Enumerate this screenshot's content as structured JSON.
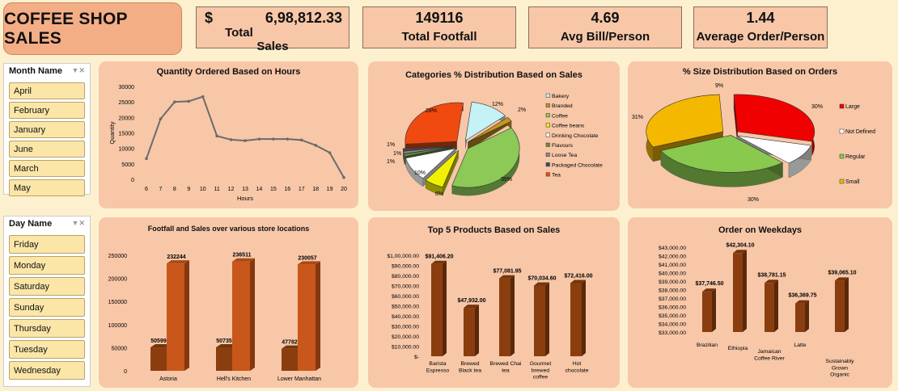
{
  "dashboard_title": "COFFEE SHOP SALES",
  "kpis": {
    "total_sales": {
      "currency": "$",
      "value": "6,98,812.33",
      "label": "Total Sales"
    },
    "total_footfall": {
      "value": "149116",
      "label": "Total Footfall"
    },
    "avg_bill": {
      "value": "4.69",
      "label": "Avg Bill/Person"
    },
    "avg_order": {
      "value": "1.44",
      "label": "Average Order/Person"
    }
  },
  "month_slicer": {
    "header": "Month Name",
    "items": [
      "April",
      "February",
      "January",
      "June",
      "March",
      "May"
    ]
  },
  "day_slicer": {
    "header": "Day Name",
    "items": [
      "Friday",
      "Monday",
      "Saturday",
      "Sunday",
      "Thursday",
      "Tuesday",
      "Wednesday"
    ]
  },
  "icons": {
    "filter": "filter-clear-icon"
  },
  "chart_data": [
    {
      "id": "hours",
      "type": "line",
      "title": "Quantity Ordered Based on Hours",
      "xlabel": "Hours",
      "ylabel": "Quantity",
      "x": [
        6,
        7,
        8,
        9,
        10,
        11,
        12,
        13,
        14,
        15,
        16,
        17,
        18,
        19,
        20
      ],
      "values": [
        6700,
        19500,
        25000,
        25200,
        26700,
        14000,
        12800,
        12500,
        13000,
        13000,
        13000,
        12700,
        11000,
        8600,
        600
      ],
      "ylim": [
        0,
        30000
      ],
      "yticks": [
        0,
        5000,
        10000,
        15000,
        20000,
        25000,
        30000
      ],
      "color": "#6b6b6b",
      "grid": false
    },
    {
      "id": "categories",
      "type": "pie",
      "title": "Categories % Distribution Based on Sales",
      "categories": [
        "Bakery",
        "Branded",
        "Coffee",
        "Coffee beans",
        "Drinking Chocolate",
        "Flavours",
        "Loose Tea",
        "Packaged Chocolate",
        "Tea"
      ],
      "values": [
        12,
        2,
        39,
        6,
        10,
        1,
        1,
        1,
        28
      ],
      "data_labels": [
        "12%",
        "2%",
        "39%",
        "6%",
        "10%",
        "1%",
        "1%",
        "1%",
        "28%"
      ],
      "colors": [
        "#c6f1f5",
        "#c8961e",
        "#8cc956",
        "#f0f000",
        "#ffffff",
        "#6b8f3a",
        "#8c8c8c",
        "#4a4a4a",
        "#f04a10"
      ],
      "legend": "right"
    },
    {
      "id": "sizes",
      "type": "pie",
      "title": "% Size Distribution Based on Orders",
      "categories": [
        "Large",
        "Not Defined",
        "Regular",
        "Small"
      ],
      "values": [
        30,
        9,
        30,
        31
      ],
      "data_labels": [
        "30%",
        "9%",
        "30%",
        "31%"
      ],
      "colors": [
        "#f00000",
        "#ffffff",
        "#88c94e",
        "#f5b800"
      ],
      "legend": "right"
    },
    {
      "id": "stores",
      "type": "bar",
      "title": "Footfall and Sales over various store locations",
      "categories": [
        "Astoria",
        "Hell's Kitchen",
        "Lower Manhattan"
      ],
      "series": [
        {
          "values": [
            50599,
            50735,
            47782
          ],
          "labels": [
            "50599",
            "50735",
            "47782"
          ],
          "color": "#8a3e0f"
        },
        {
          "values": [
            232244,
            236511,
            230057
          ],
          "labels": [
            "232244",
            "236511",
            "230057"
          ],
          "color": "#c9561a"
        }
      ],
      "ylim": [
        0,
        250000
      ],
      "yticks": [
        0,
        50000,
        100000,
        150000,
        200000,
        250000
      ]
    },
    {
      "id": "products",
      "type": "bar",
      "title": "Top 5 Products Based on Sales",
      "categories": [
        [
          "Barista",
          "Espresso"
        ],
        [
          "Brewed",
          "Black tea"
        ],
        [
          "Brewed Chai",
          "tea"
        ],
        [
          "Gourmet",
          "brewed",
          "coffee"
        ],
        [
          "Hot",
          "chocolate"
        ]
      ],
      "values": [
        91406.2,
        47932,
        77081.95,
        70034.6,
        72416
      ],
      "data_labels": [
        "$91,406.20",
        "$47,932.00",
        "$77,081.95",
        "$70,034.60",
        "$72,416.00"
      ],
      "ylim": [
        0,
        100000
      ],
      "ytick_labels": [
        "$-",
        "$10,000.00",
        "$20,000.00",
        "$30,000.00",
        "$40,000.00",
        "$50,000.00",
        "$60,000.00",
        "$70,000.00",
        "$80,000.00",
        "$90,000.00",
        "$1,00,000.00"
      ],
      "color": "#8a3e0f"
    },
    {
      "id": "weekdays",
      "type": "bar",
      "title": "Order on Weekdays",
      "categories": [
        [
          "Brazilian"
        ],
        [
          "Ethiopia"
        ],
        [
          "Jamaican",
          "Coffee River"
        ],
        [
          "Latte"
        ],
        [
          "Sustainably",
          "Grown",
          "Organic"
        ]
      ],
      "values": [
        37746.5,
        42304.1,
        38781.15,
        36369.75,
        39065.1
      ],
      "data_labels": [
        "$37,746.50",
        "$42,304.10",
        "$38,781.15",
        "$36,369.75",
        "$39,065.10"
      ],
      "ylim": [
        33000,
        43000
      ],
      "ytick_labels": [
        "$33,000.00",
        "$34,000.00",
        "$35,000.00",
        "$36,000.00",
        "$37,000.00",
        "$38,000.00",
        "$39,000.00",
        "$40,000.00",
        "$41,000.00",
        "$42,000.00",
        "$43,000.00"
      ],
      "color": "#8a3e0f"
    }
  ]
}
